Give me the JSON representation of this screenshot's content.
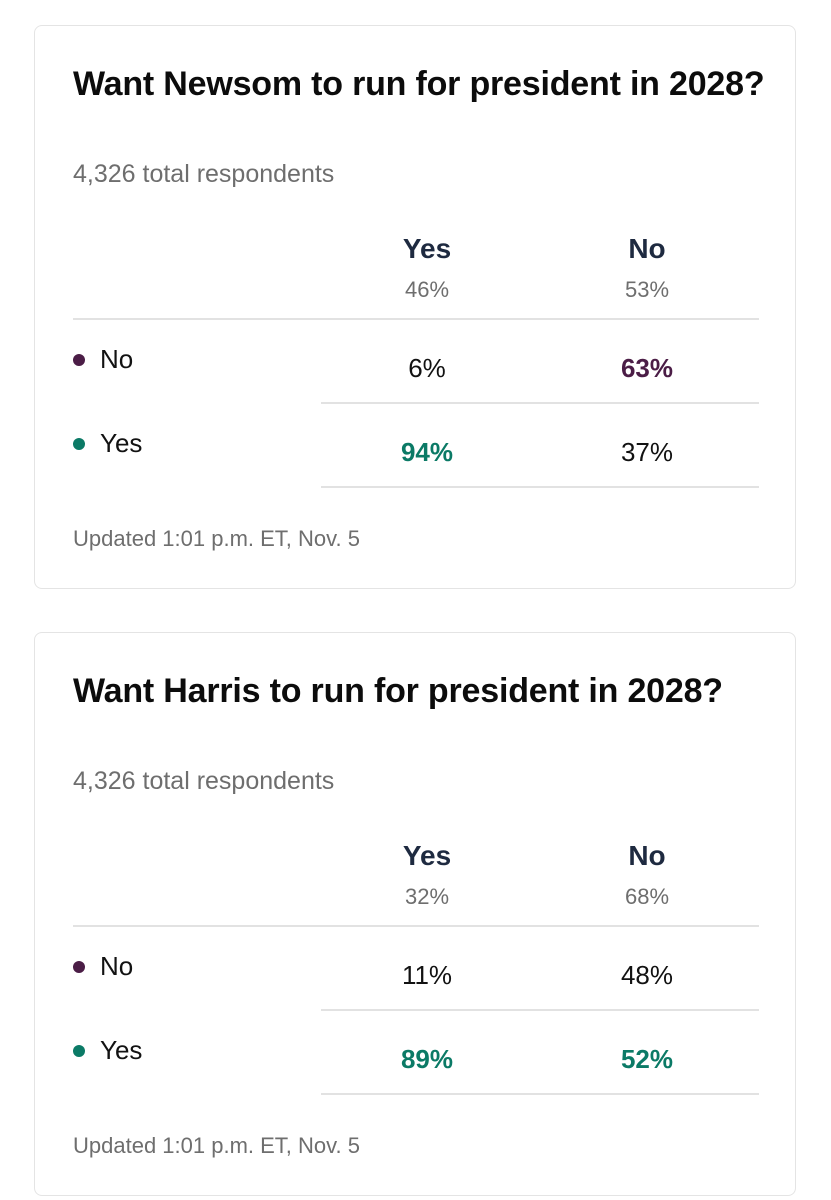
{
  "colors": {
    "no": "#4b1d46",
    "yes": "#0b7a66",
    "title": "#0c0c0c",
    "column_header": "#1e2a40",
    "muted": "#6e6e6e"
  },
  "polls": [
    {
      "title": "Want Newsom to run for president in 2028?",
      "subtitle": "4,326 total respondents",
      "columns": [
        {
          "label": "Yes",
          "pct": "46%"
        },
        {
          "label": "No",
          "pct": "53%"
        }
      ],
      "rows": [
        {
          "label": "No",
          "color_key": "no",
          "cells": [
            "6%",
            "63%"
          ],
          "winner": [
            false,
            true
          ]
        },
        {
          "label": "Yes",
          "color_key": "yes",
          "cells": [
            "94%",
            "37%"
          ],
          "winner": [
            true,
            false
          ]
        }
      ],
      "updated": "Updated 1:01 p.m. ET, Nov. 5"
    },
    {
      "title": "Want Harris to run for president in 2028?",
      "subtitle": "4,326 total respondents",
      "columns": [
        {
          "label": "Yes",
          "pct": "32%"
        },
        {
          "label": "No",
          "pct": "68%"
        }
      ],
      "rows": [
        {
          "label": "No",
          "color_key": "no",
          "cells": [
            "11%",
            "48%"
          ],
          "winner": [
            false,
            false
          ]
        },
        {
          "label": "Yes",
          "color_key": "yes",
          "cells": [
            "89%",
            "52%"
          ],
          "winner": [
            true,
            true
          ]
        }
      ],
      "updated": "Updated 1:01 p.m. ET, Nov. 5"
    }
  ],
  "chart_data": [
    {
      "type": "table",
      "title": "Want Newsom to run for president in 2028?",
      "subtitle": "4,326 total respondents",
      "columns": [
        "Yes",
        "No"
      ],
      "column_shares": [
        46,
        53
      ],
      "rows": [
        {
          "name": "No",
          "values": [
            6,
            63
          ]
        },
        {
          "name": "Yes",
          "values": [
            94,
            37
          ]
        }
      ]
    },
    {
      "type": "table",
      "title": "Want Harris to run for president in 2028?",
      "subtitle": "4,326 total respondents",
      "columns": [
        "Yes",
        "No"
      ],
      "column_shares": [
        32,
        68
      ],
      "rows": [
        {
          "name": "No",
          "values": [
            11,
            48
          ]
        },
        {
          "name": "Yes",
          "values": [
            89,
            52
          ]
        }
      ]
    }
  ]
}
